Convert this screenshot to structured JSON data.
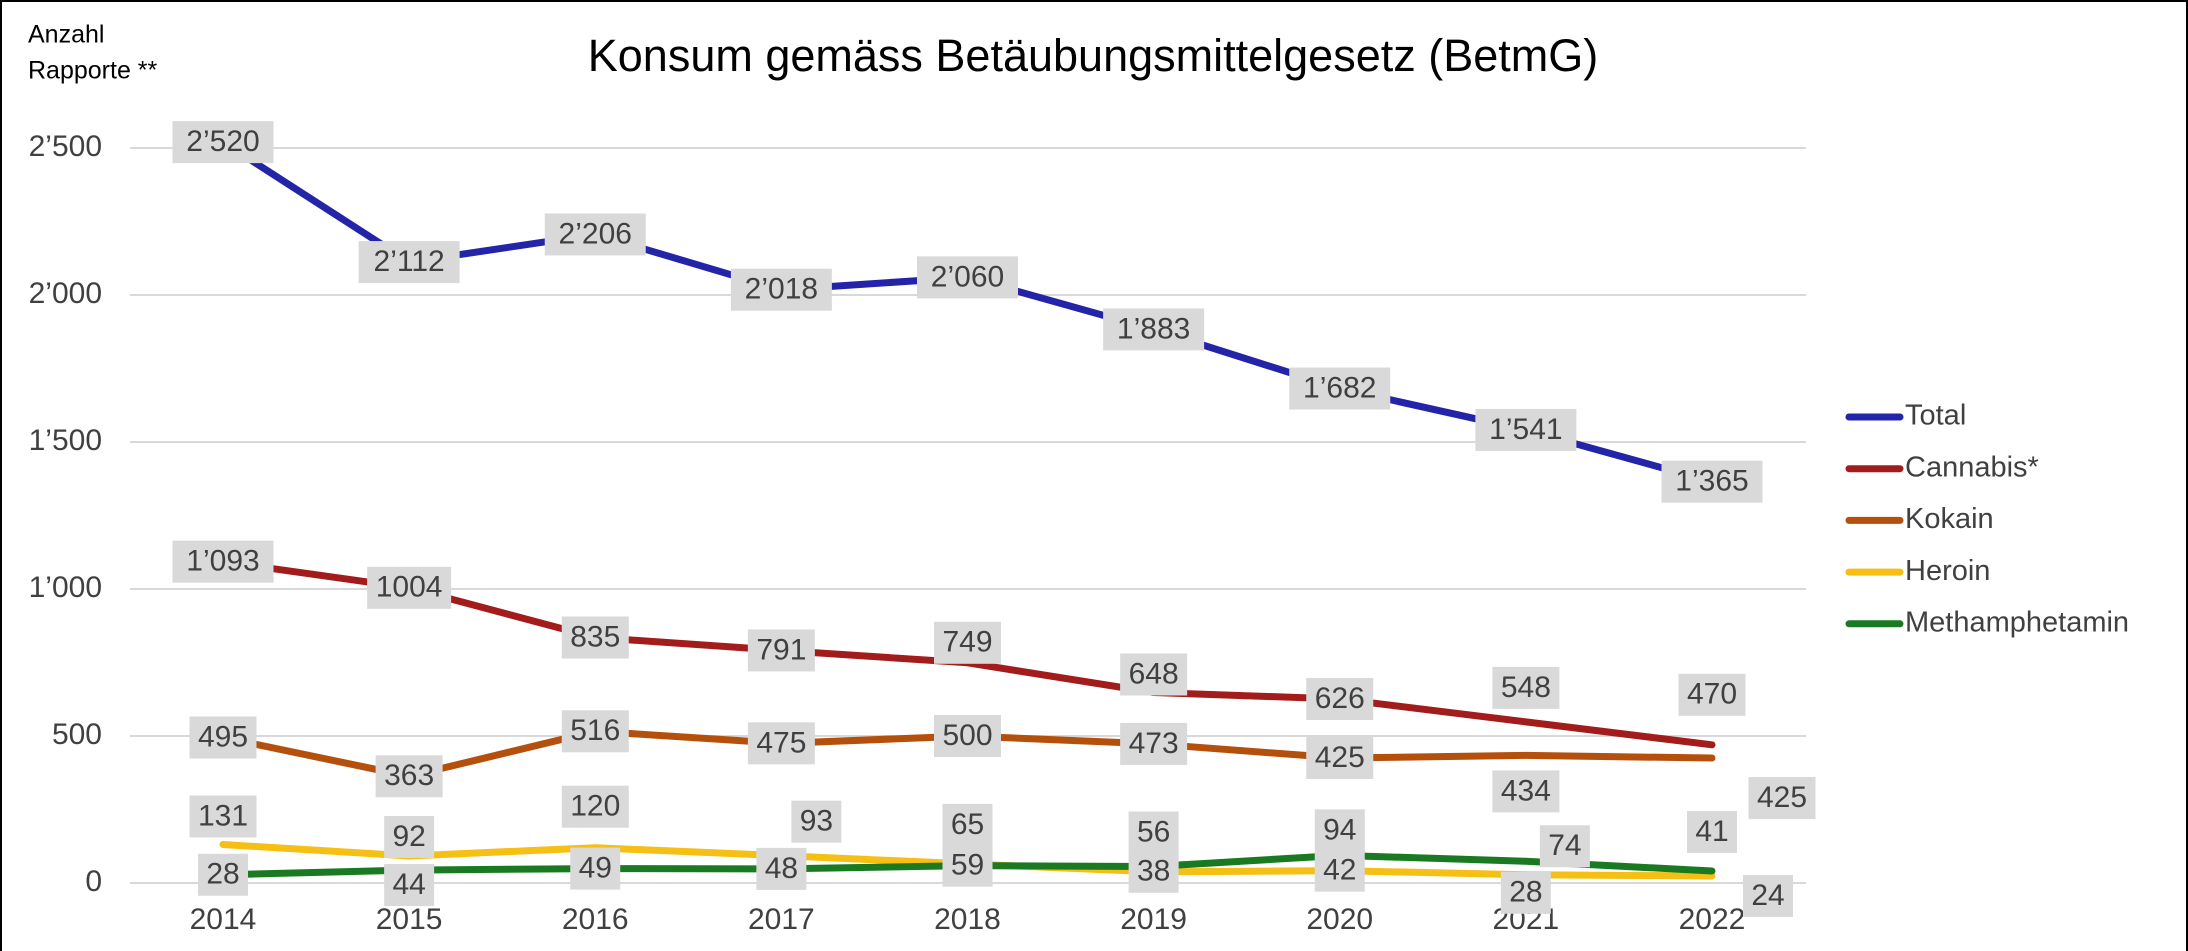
{
  "chart_data": {
    "type": "line",
    "title": "Konsum gemäss Betäubungsmittelgesetz (BetmG)",
    "y_label": [
      "Anzahl",
      "Rapporte **"
    ],
    "categories": [
      "2014",
      "2015",
      "2016",
      "2017",
      "2018",
      "2019",
      "2020",
      "2021",
      "2022"
    ],
    "ylim": [
      0,
      2500
    ],
    "yticks": [
      0,
      500,
      {
        "value": 1000,
        "label": "1’000"
      },
      {
        "value": 1500,
        "label": "1’500"
      },
      {
        "value": 2000,
        "label": "2’000"
      },
      {
        "value": 2500,
        "label": "2’500"
      }
    ],
    "grid": true,
    "legend": "right",
    "series": [
      {
        "name": "Total",
        "color": "#2424a8",
        "values": [
          2520,
          2112,
          2206,
          2018,
          2060,
          1883,
          1682,
          1541,
          1365
        ],
        "value_labels": [
          "2’520",
          "2’112",
          "2’206",
          "2’018",
          "2’060",
          "1’883",
          "1’682",
          "1’541",
          "1’365"
        ]
      },
      {
        "name": "Cannabis*",
        "color": "#a31c1c",
        "values": [
          1093,
          1004,
          835,
          791,
          749,
          648,
          626,
          548,
          470
        ],
        "value_labels": [
          "1’093",
          "1004",
          "835",
          "791",
          "749",
          "648",
          "626",
          "548",
          "470"
        ]
      },
      {
        "name": "Kokain",
        "color": "#b5500c",
        "values": [
          495,
          363,
          516,
          475,
          500,
          473,
          425,
          434,
          425
        ]
      },
      {
        "name": "Heroin",
        "color": "#f5bf14",
        "values": [
          131,
          92,
          120,
          93,
          65,
          38,
          42,
          28,
          24
        ]
      },
      {
        "name": "Methamphetamin",
        "color": "#1a7a22",
        "values": [
          28,
          44,
          49,
          48,
          59,
          56,
          94,
          74,
          41
        ]
      }
    ]
  }
}
